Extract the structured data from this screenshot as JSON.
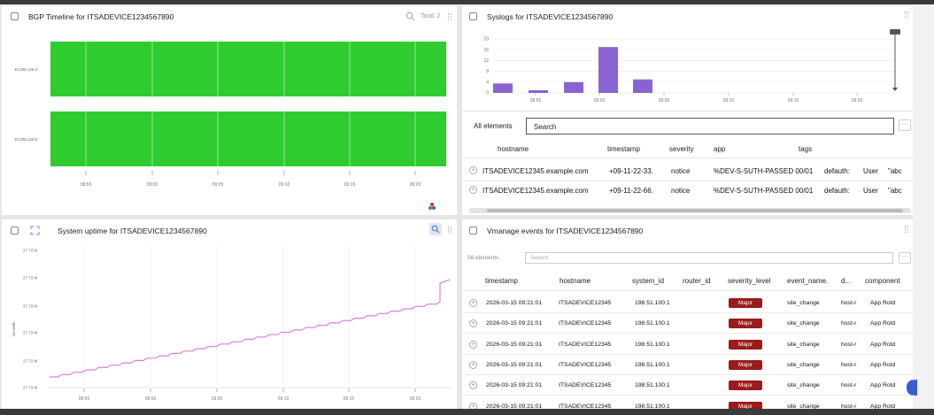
{
  "bgp": {
    "title": "BGP Timeline for ITSADEVICE1234567890",
    "total_label": "Total: 2",
    "peers": [
      "10.205.128.4",
      "10.205.128.5"
    ],
    "x_ticks": [
      "08:55",
      "09:00",
      "09:05",
      "09:10",
      "09:15",
      "09:20"
    ],
    "bar_color": "#2ecc2e"
  },
  "syslogs": {
    "title": "Syslogs for ITSADEVICE1234567890",
    "chart_data": {
      "type": "bar",
      "categories": [
        "08:47",
        "08:52",
        "08:57",
        "09:00",
        "09:03"
      ],
      "values": [
        3.5,
        1,
        4,
        17,
        5
      ],
      "ylim": [
        0,
        20
      ],
      "y_ticks": [
        "0",
        "4",
        "8",
        "12",
        "16",
        "20"
      ],
      "x_ticks": [
        "08:55",
        "09:00",
        "09:05",
        "09:10",
        "09:15",
        "09:20"
      ],
      "color": "#8a63d2"
    },
    "scope_label": "All elements",
    "search_placeholder": "Search",
    "columns": [
      "hostname",
      "timestamp",
      "severity",
      "app",
      "tags"
    ],
    "rows": [
      {
        "hostname": "ITSADEVICE12345.example.com",
        "timestamp": "+09-11-22-33.",
        "severity": "notice",
        "app": "%DEV-S-SUTH-PASSED 00/01",
        "tag1": "defauth:",
        "tag2": "User",
        "tag3": "\"abc"
      },
      {
        "hostname": "ITSADEVICE12345.example.com",
        "timestamp": "+09-11-22-66.",
        "severity": "notice",
        "app": "%DEV-S-SUTH-PASSED 00/01",
        "tag1": "defauth:",
        "tag2": "User",
        "tag3": "\"abc"
      }
    ]
  },
  "uptime": {
    "title": "System uptime for ITSADEVICE1234567890",
    "y_label": "seconds",
    "y_ticks": [
      "27.73 M",
      "27.73 M",
      "27.73 M",
      "27.73 M",
      "27.73 M",
      "27.73 M"
    ],
    "x_ticks": [
      "08:55",
      "09:00",
      "09:05",
      "09:10",
      "09:15",
      "09:20"
    ],
    "line_color": "#e07fd8"
  },
  "vmanage": {
    "title": "Vmanage events for ITSADEVICE1234567890",
    "count_label": "56 elements",
    "search_placeholder": "Search",
    "columns": [
      "timestamp",
      "hostname",
      "system_id",
      "router_id",
      "severity_level",
      "event_name.",
      "d...",
      "component"
    ],
    "rows": [
      {
        "timestamp": "2026-03-15 09:21:01",
        "hostname": "ITSADEVICE12345",
        "system_id": "198.51.100.1",
        "severity": "Major",
        "event": "site_change",
        "d": "host-r",
        "component": "App Rotd"
      },
      {
        "timestamp": "2026-03-15 09:21:01",
        "hostname": "ITSADEVICE12345",
        "system_id": "198.51.100.1",
        "severity": "Major",
        "event": "site_change",
        "d": "host-r",
        "component": "App Rotd"
      },
      {
        "timestamp": "2026-03-15 09:21:01",
        "hostname": "ITSADEVICE12345",
        "system_id": "198.51.100.1",
        "severity": "Major",
        "event": "site_change",
        "d": "host-r",
        "component": "App Rotd"
      },
      {
        "timestamp": "2026-03-15 09:21:01",
        "hostname": "ITSADEVICE12345",
        "system_id": "198.51.100.1",
        "severity": "Major",
        "event": "site_change",
        "d": "host-r",
        "component": "App Rotd"
      },
      {
        "timestamp": "2026-03-15 09:21:01",
        "hostname": "ITSADEVICE12345",
        "system_id": "198.51.100.1",
        "severity": "Major",
        "event": "site_change",
        "d": "host-r",
        "component": "App Rotd"
      },
      {
        "timestamp": "2026-03-15 09:21:01",
        "hostname": "ITSADEVICE12345",
        "system_id": "198.51.100.1",
        "severity": "Major",
        "event": "site_change",
        "d": "host-r",
        "component": "App Rotd"
      }
    ]
  }
}
